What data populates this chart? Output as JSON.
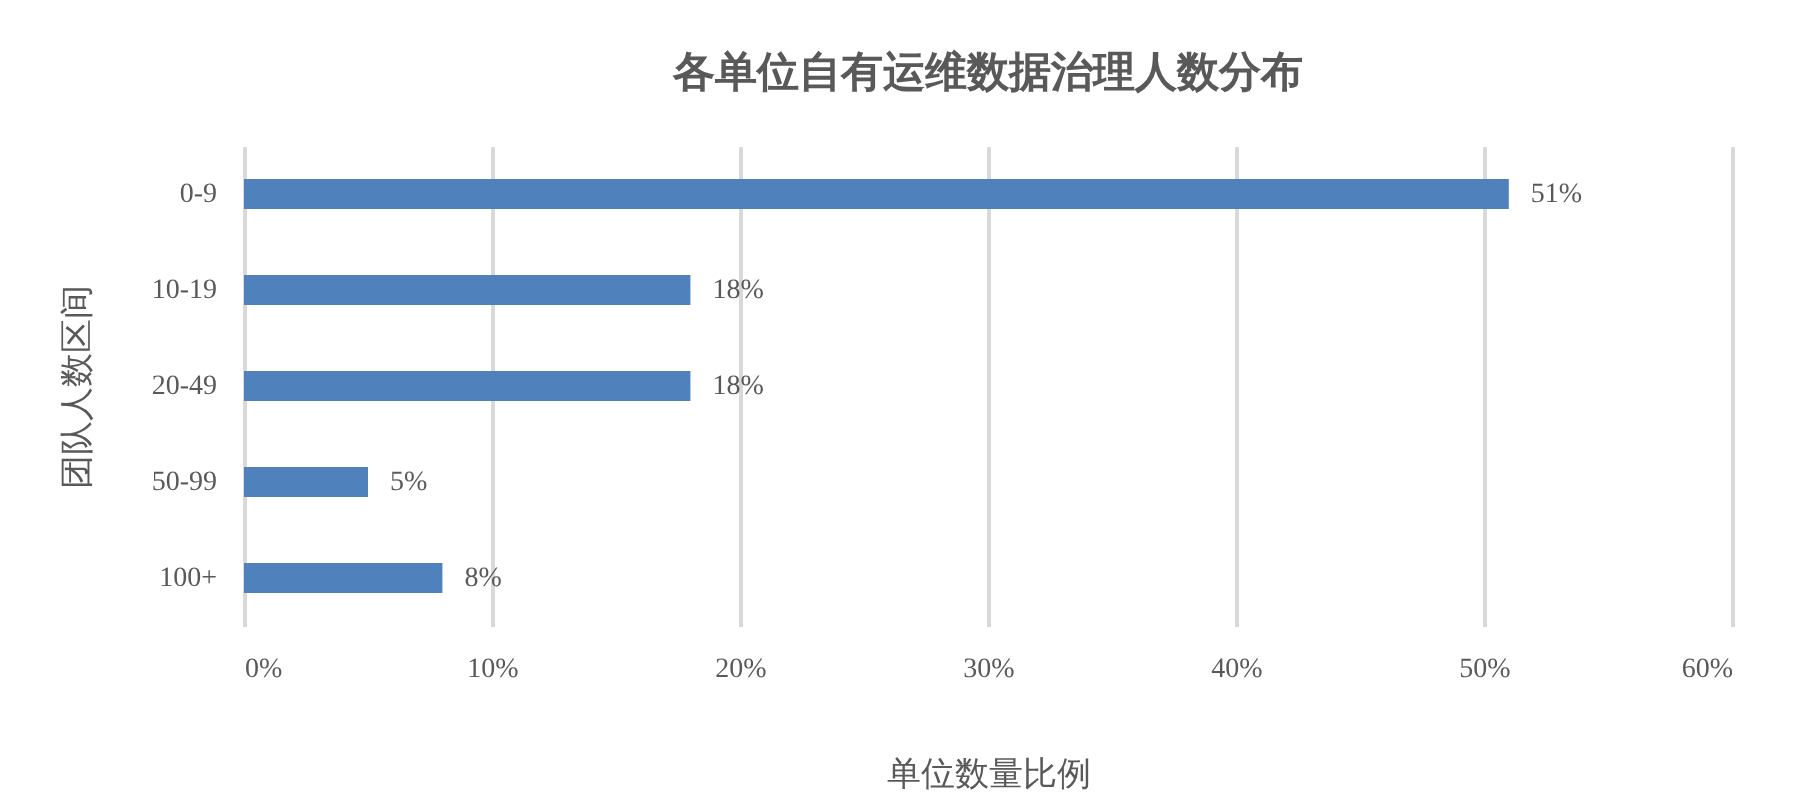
{
  "chart_data": {
    "type": "bar",
    "orientation": "horizontal",
    "title": "各单位自有运维数据治理人数分布",
    "xlabel": "单位数量比例",
    "ylabel": "团队人数区间",
    "categories": [
      "0-9",
      "10-19",
      "20-49",
      "50-99",
      "100+"
    ],
    "values": [
      51,
      18,
      18,
      5,
      8
    ],
    "color": "#4f81bd",
    "value_labels": [
      "51%",
      "18%",
      "18%",
      "5%",
      "8%"
    ],
    "xlim": [
      0,
      60
    ],
    "xticks": [
      {
        "value": 0,
        "label": "0%"
      },
      {
        "value": 10,
        "label": "10%"
      },
      {
        "value": 20,
        "label": "20%"
      },
      {
        "value": 30,
        "label": "30%"
      },
      {
        "value": 40,
        "label": "40%"
      },
      {
        "value": 50,
        "label": "50%"
      },
      {
        "value": 60,
        "label": "60%"
      }
    ],
    "grid": true
  }
}
